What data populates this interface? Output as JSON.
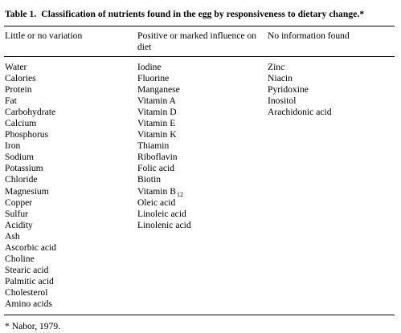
{
  "table": {
    "number": "Table 1.",
    "title": "Classification of nutrients found in the egg by responsiveness to dietary change.*",
    "headers": [
      "Little or no variation",
      "Positive or marked influence on diet",
      "No information found"
    ],
    "columns": {
      "little_or_no_variation": [
        "Water",
        "Calories",
        "Protein",
        "Fat",
        "Carbohydrate",
        "Calcium",
        "Phosphorus",
        "Iron",
        "Sodium",
        "Potassium",
        "Chloride",
        "Magnesium",
        "Copper",
        "Sulfur",
        "Acidity",
        "Ash",
        "Ascorbic acid",
        "Choline",
        "Stearic acid",
        "Palmitic acid",
        "Cholesterol",
        "Amino acids"
      ],
      "positive_or_marked_influence": [
        "Iodine",
        "Fluorine",
        "Manganese",
        "Vitamin A",
        "Vitamin D",
        "Vitamin E",
        "Vitamin K",
        "Thiamin",
        "Riboflavin",
        "Folic acid",
        "Biotin",
        "Vitamin B12",
        "Oleic acid",
        "Linoleic acid",
        "Linolenic acid"
      ],
      "no_information_found": [
        "Zinc",
        "Niacin",
        "Pyridoxine",
        "Inositol",
        "Arachidonic acid"
      ]
    },
    "b12": {
      "base": "Vitamin B",
      "subscript": "12"
    },
    "footnote": "* Nabor, 1979."
  }
}
